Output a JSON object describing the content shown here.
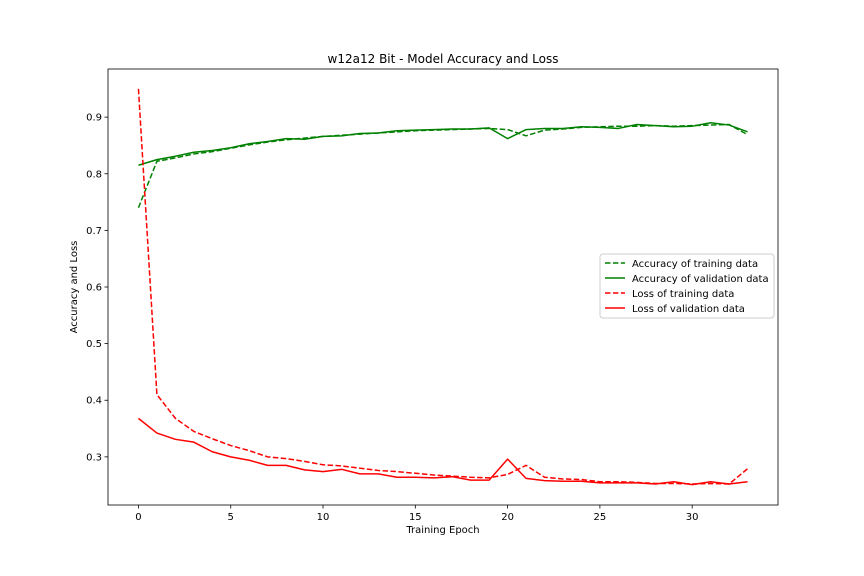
{
  "chart_data": {
    "type": "line",
    "title": "w12a12 Bit - Model Accuracy and Loss",
    "xlabel": "Training Epoch",
    "ylabel": "Accuracy and Loss",
    "xlim": [
      -1.65,
      34.65
    ],
    "ylim": [
      0.215,
      0.985
    ],
    "xticks": [
      0,
      5,
      10,
      15,
      20,
      25,
      30
    ],
    "yticks": [
      0.3,
      0.4,
      0.5,
      0.6,
      0.7,
      0.8,
      0.9
    ],
    "xtick_labels": [
      "0",
      "5",
      "10",
      "15",
      "20",
      "25",
      "30"
    ],
    "ytick_labels": [
      "0.3",
      "0.4",
      "0.5",
      "0.6",
      "0.7",
      "0.8",
      "0.9"
    ],
    "grid": false,
    "legend_position": "center-right",
    "x": [
      0,
      1,
      2,
      3,
      4,
      5,
      6,
      7,
      8,
      9,
      10,
      11,
      12,
      13,
      14,
      15,
      16,
      17,
      18,
      19,
      20,
      21,
      22,
      23,
      24,
      25,
      26,
      27,
      28,
      29,
      30,
      31,
      32,
      33
    ],
    "series": [
      {
        "name": "Accuracy of training data",
        "color": "#008000",
        "style": "dashed",
        "values": [
          0.74,
          0.822,
          0.828,
          0.835,
          0.839,
          0.845,
          0.851,
          0.856,
          0.86,
          0.863,
          0.866,
          0.868,
          0.87,
          0.872,
          0.874,
          0.876,
          0.877,
          0.878,
          0.879,
          0.88,
          0.878,
          0.867,
          0.877,
          0.879,
          0.882,
          0.883,
          0.884,
          0.884,
          0.885,
          0.884,
          0.885,
          0.886,
          0.887,
          0.869
        ]
      },
      {
        "name": "Accuracy of validation data",
        "color": "#008000",
        "style": "solid",
        "values": [
          0.815,
          0.825,
          0.831,
          0.838,
          0.841,
          0.846,
          0.853,
          0.857,
          0.862,
          0.861,
          0.866,
          0.867,
          0.871,
          0.872,
          0.876,
          0.877,
          0.878,
          0.879,
          0.879,
          0.881,
          0.862,
          0.878,
          0.88,
          0.88,
          0.883,
          0.882,
          0.88,
          0.887,
          0.885,
          0.883,
          0.884,
          0.89,
          0.886,
          0.874
        ]
      },
      {
        "name": "Loss of training data",
        "color": "#ff0000",
        "style": "dashed",
        "values": [
          0.95,
          0.41,
          0.368,
          0.345,
          0.332,
          0.32,
          0.311,
          0.3,
          0.297,
          0.292,
          0.286,
          0.284,
          0.28,
          0.276,
          0.274,
          0.271,
          0.268,
          0.266,
          0.264,
          0.263,
          0.269,
          0.285,
          0.264,
          0.261,
          0.26,
          0.256,
          0.256,
          0.255,
          0.253,
          0.253,
          0.252,
          0.253,
          0.252,
          0.279
        ]
      },
      {
        "name": "Loss of validation data",
        "color": "#ff0000",
        "style": "solid",
        "values": [
          0.368,
          0.342,
          0.331,
          0.326,
          0.309,
          0.3,
          0.294,
          0.285,
          0.285,
          0.277,
          0.274,
          0.278,
          0.27,
          0.27,
          0.264,
          0.264,
          0.263,
          0.265,
          0.259,
          0.259,
          0.296,
          0.262,
          0.258,
          0.257,
          0.257,
          0.254,
          0.254,
          0.254,
          0.252,
          0.256,
          0.251,
          0.256,
          0.252,
          0.256
        ]
      }
    ]
  }
}
